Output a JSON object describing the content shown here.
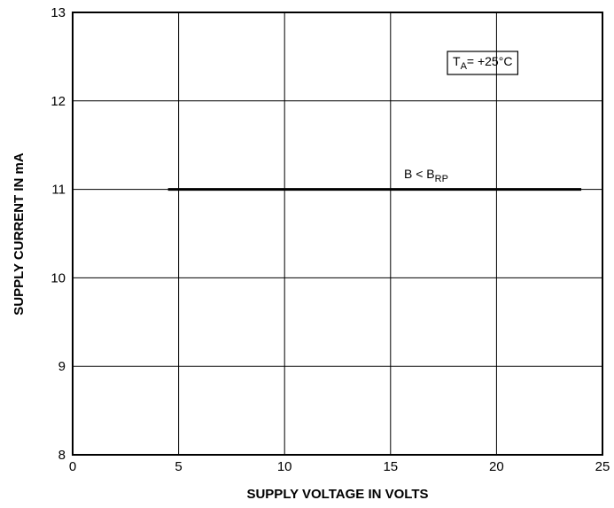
{
  "chart_data": {
    "type": "line",
    "x_label": "SUPPLY VOLTAGE IN VOLTS",
    "y_label": "SUPPLY CURRENT IN mA",
    "x": [
      4.5,
      24
    ],
    "series": [
      {
        "color": "#000000",
        "values": [
          11,
          11
        ]
      }
    ],
    "xlim": [
      0,
      25
    ],
    "xticks": [
      0,
      5,
      10,
      15,
      20,
      25
    ],
    "ylim": [
      8,
      13
    ],
    "yticks": [
      8,
      9,
      10,
      11,
      12,
      13
    ],
    "grid": true,
    "annotations": [
      {
        "boxed": true,
        "parts": [
          {
            "text": "T"
          },
          {
            "text": "A",
            "sub": true
          },
          {
            "text": "= +25°C"
          }
        ]
      },
      {
        "boxed": false,
        "parts": [
          {
            "text": "B < B"
          },
          {
            "text": "RP",
            "sub": true
          }
        ]
      }
    ]
  }
}
